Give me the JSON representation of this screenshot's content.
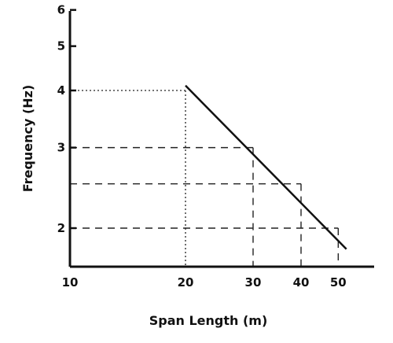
{
  "chart_data": {
    "type": "line",
    "title": "",
    "xlabel": "Span Length (m)",
    "ylabel": "Frequency (Hz)",
    "x_tick_labels": [
      "10",
      "20",
      "30",
      "40",
      "50"
    ],
    "y_tick_labels": [
      "2",
      "3",
      "4",
      "5",
      "6"
    ],
    "x_ticks": [
      10,
      20,
      30,
      40,
      50
    ],
    "y_ticks": [
      2,
      3,
      4,
      5,
      6
    ],
    "xlim": [
      10,
      53
    ],
    "ylim": [
      1.7,
      6.05
    ],
    "x_scale": "log",
    "y_scale": "log",
    "grid": false,
    "series": [
      {
        "x": [
          20,
          52.5
        ],
        "y": [
          4.1,
          1.8
        ]
      }
    ],
    "reference_lines": [
      {
        "x": 20,
        "y": 4.0,
        "style": "dotted"
      },
      {
        "x": 30,
        "y": 3.0,
        "style": "dashed"
      },
      {
        "x": 40,
        "y": 2.5,
        "style": "dashed"
      },
      {
        "x": 50,
        "y": 2.0,
        "style": "dashed"
      }
    ]
  }
}
